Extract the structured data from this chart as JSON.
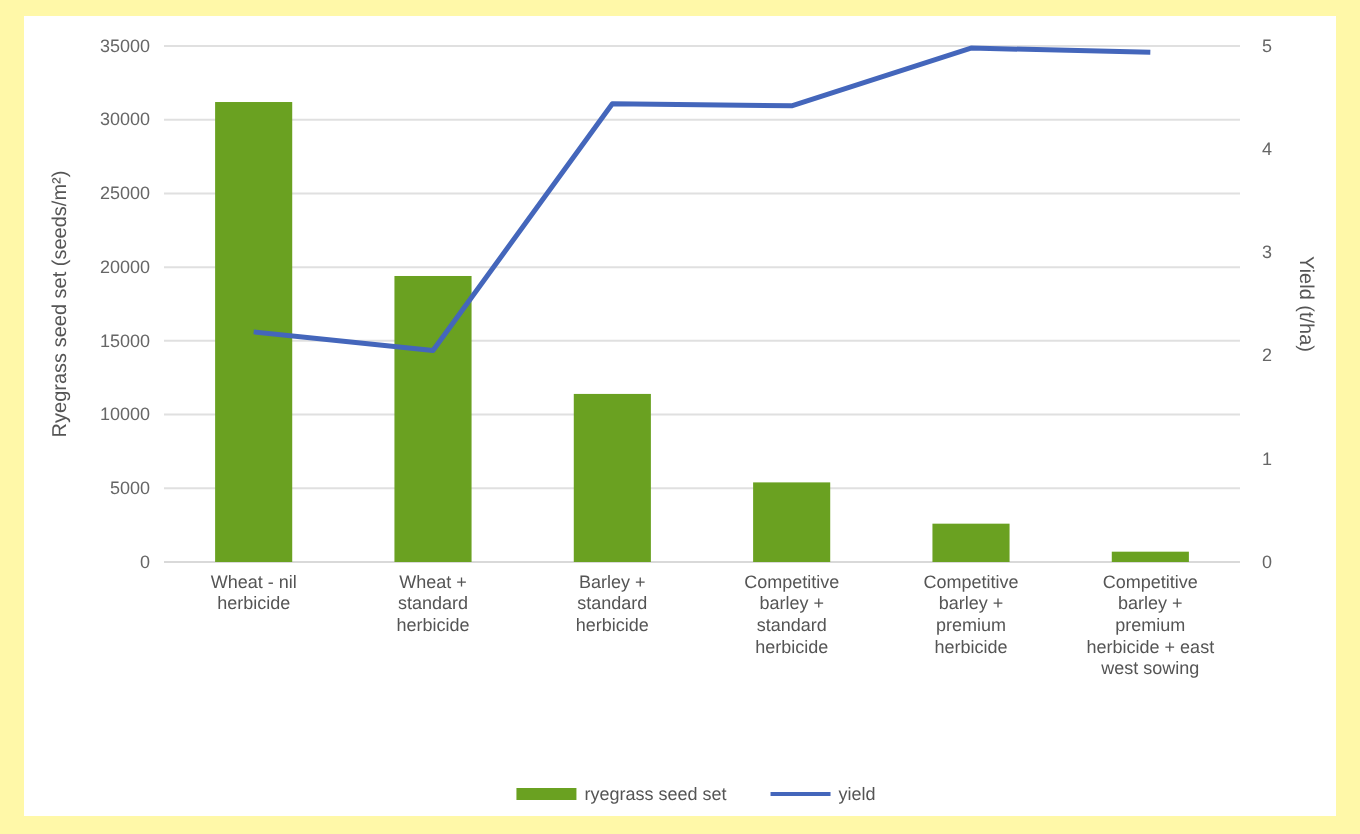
{
  "chart_data": {
    "type": "bar",
    "categories": [
      "Wheat - nil herbicide",
      "Wheat + standard herbicide",
      "Barley + standard herbicide",
      "Competitive barley + standard herbicide",
      "Competitive barley + premium herbicide",
      "Competitive barley + premium herbicide + east west sowing"
    ],
    "series": [
      {
        "name": "ryegrass seed set",
        "color": "#6aa121",
        "values": [
          31200,
          19400,
          11400,
          5400,
          2600,
          700
        ]
      },
      {
        "name": "yield",
        "type": "line",
        "axis": "y2",
        "color": "#4466bb",
        "values": [
          2.23,
          2.05,
          4.44,
          4.42,
          4.98,
          4.94
        ]
      }
    ],
    "ylabel": "Ryegrass seed set (seeds/m²)",
    "y2label": "Yield (t/ha)",
    "ylim": [
      0,
      35000
    ],
    "yticks": [
      0,
      5000,
      10000,
      15000,
      20000,
      25000,
      30000,
      35000
    ],
    "y2lim": [
      0,
      5
    ],
    "y2ticks": [
      0,
      1,
      2,
      3,
      4,
      5
    ],
    "grid": "y",
    "legend": "bottom",
    "marker": "none",
    "line_style": "solid"
  }
}
